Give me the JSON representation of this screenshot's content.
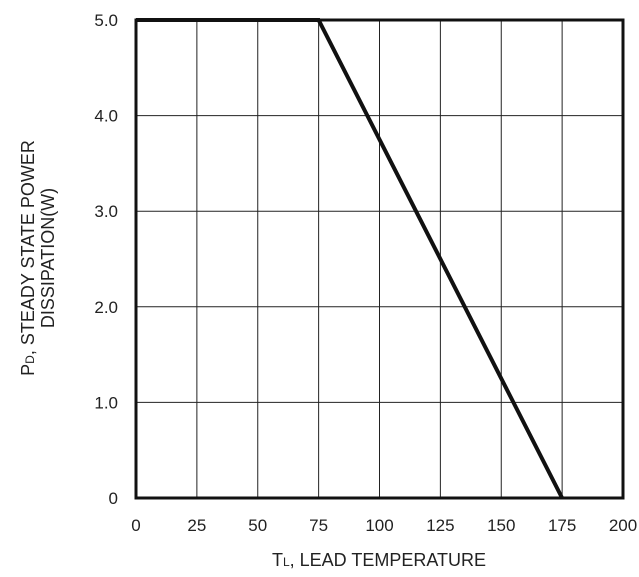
{
  "chart_data": {
    "type": "line",
    "title": "",
    "xlabel_prefix": "T",
    "xlabel_subscript": "L",
    "xlabel_rest": ", LEAD TEMPERATURE",
    "ylabel_line1_prefix": "P",
    "ylabel_line1_subscript": "D",
    "ylabel_line1_rest": ", STEADY STATE POWER",
    "ylabel_line2": "DISSIPATION(W)",
    "x_ticks": [
      0,
      25,
      50,
      75,
      100,
      125,
      150,
      175,
      200
    ],
    "x_tick_labels": [
      "0",
      "25",
      "50",
      "75",
      "100",
      "125",
      "150",
      "175",
      "200"
    ],
    "y_ticks": [
      0,
      1,
      2,
      3,
      4,
      5
    ],
    "y_tick_labels": [
      "0",
      "1.0",
      "2.0",
      "3.0",
      "4.0",
      "5.0"
    ],
    "xlim": [
      0,
      200
    ],
    "ylim": [
      0,
      5
    ],
    "grid": true,
    "series": [
      {
        "x": [
          0,
          75,
          175
        ],
        "y": [
          5,
          5,
          0
        ],
        "color": "#111111"
      }
    ]
  }
}
